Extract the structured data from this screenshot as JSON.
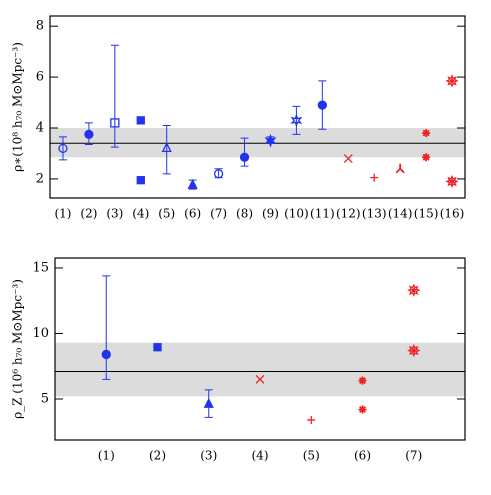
{
  "chart_data": [
    {
      "type": "errorbar-scatter",
      "ylabel": "ρ∗(10⁸ h₇₀ M⊙Mpc⁻³)",
      "categories": [
        "(1)",
        "(2)",
        "(3)",
        "(4)",
        "(5)",
        "(6)",
        "(7)",
        "(8)",
        "(9)",
        "(10)",
        "(11)",
        "(12)",
        "(13)",
        "(14)",
        "(15)",
        "(16)"
      ],
      "ylim": [
        1.25,
        8.4
      ],
      "yticks": [
        2,
        4,
        6,
        8
      ],
      "band": [
        2.85,
        4.0
      ],
      "hline": 3.4,
      "series": [
        {
          "values": [
            3.2,
            3.75,
            4.2,
            4.3,
            3.2,
            1.75,
            2.2,
            2.85,
            3.5,
            4.3,
            4.9,
            2.8,
            2.05,
            2.4,
            3.8,
            5.85
          ],
          "err_low": [
            2.75,
            3.35,
            3.25,
            null,
            2.2,
            1.6,
            2.05,
            2.5,
            3.4,
            3.75,
            3.95,
            null,
            null,
            null,
            null,
            null
          ],
          "err_high": [
            3.65,
            4.2,
            7.25,
            null,
            4.1,
            1.95,
            2.4,
            3.6,
            3.65,
            4.85,
            5.85,
            null,
            null,
            null,
            null,
            null
          ],
          "markers": [
            "circle-open",
            "circle",
            "square-open",
            "square",
            "triangle-open",
            "triangle",
            "circle-open",
            "circle",
            "star",
            "star-open",
            "circle",
            "x",
            "plus",
            "tri",
            "asterisk",
            "burst"
          ],
          "colors": [
            "#2233ee",
            "#2233ee",
            "#2233ee",
            "#2233ee",
            "#2233ee",
            "#2233ee",
            "#2233ee",
            "#2233ee",
            "#2233ee",
            "#2233ee",
            "#2233ee",
            "#ee2222",
            "#ee2222",
            "#ee2222",
            "#ee2222",
            "#ee2222"
          ]
        },
        {
          "values": [
            null,
            null,
            null,
            1.95,
            null,
            null,
            null,
            null,
            null,
            null,
            null,
            null,
            null,
            null,
            2.85,
            1.9
          ],
          "markers": [
            null,
            null,
            null,
            "square",
            null,
            null,
            null,
            null,
            null,
            null,
            null,
            null,
            null,
            null,
            "asterisk",
            "burst"
          ],
          "colors": [
            null,
            null,
            null,
            "#2233ee",
            null,
            null,
            null,
            null,
            null,
            null,
            null,
            null,
            null,
            null,
            "#ee2222",
            "#ee2222"
          ]
        }
      ]
    },
    {
      "type": "errorbar-scatter",
      "ylabel": "ρ_Z (10⁶ h₇₀ M⊙Mpc⁻³)",
      "categories": [
        "(1)",
        "(2)",
        "(3)",
        "(4)",
        "(5)",
        "(6)",
        "(7)"
      ],
      "ylim": [
        1.87,
        15.76
      ],
      "yticks": [
        5,
        10,
        15
      ],
      "band": [
        5.2,
        9.3
      ],
      "hline": 7.1,
      "series": [
        {
          "values": [
            8.4,
            8.95,
            4.6,
            6.5,
            3.4,
            6.4,
            13.3
          ],
          "err_low": [
            6.5,
            null,
            3.6,
            null,
            null,
            null,
            null
          ],
          "err_high": [
            14.4,
            null,
            5.7,
            null,
            null,
            null,
            null
          ],
          "markers": [
            "circle",
            "square",
            "triangle",
            "x",
            "plus",
            "asterisk",
            "burst"
          ],
          "colors": [
            "#2233ee",
            "#2233ee",
            "#2233ee",
            "#ee2222",
            "#ee2222",
            "#ee2222",
            "#ee2222"
          ]
        },
        {
          "values": [
            null,
            null,
            null,
            null,
            null,
            4.2,
            8.7
          ],
          "markers": [
            null,
            null,
            null,
            null,
            null,
            "asterisk",
            "burst"
          ],
          "colors": [
            null,
            null,
            null,
            null,
            null,
            "#ee2222",
            "#ee2222"
          ]
        }
      ]
    }
  ]
}
